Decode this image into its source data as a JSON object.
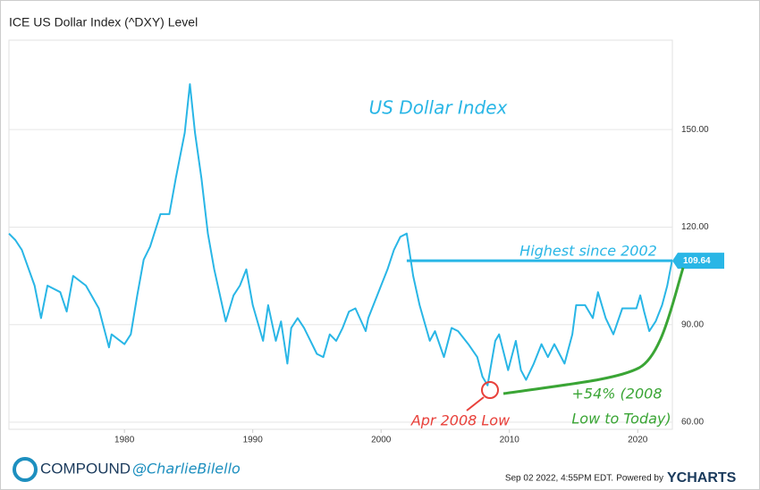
{
  "chart_data": {
    "type": "line",
    "title": "ICE US Dollar Index (^DXY) Level",
    "x": [
      1971,
      1971.5,
      1972,
      1973,
      1973.5,
      1974,
      1975,
      1975.5,
      1976,
      1977,
      1978,
      1978.8,
      1979,
      1980,
      1980.5,
      1981,
      1981.5,
      1982,
      1982.8,
      1983.5,
      1984,
      1984.7,
      1985.1,
      1985.5,
      1986,
      1986.5,
      1987,
      1987.9,
      1988.5,
      1989,
      1989.5,
      1990,
      1990.8,
      1991.2,
      1991.8,
      1992.2,
      1992.7,
      1993,
      1993.5,
      1994,
      1995,
      1995.5,
      1996,
      1996.5,
      1997,
      1997.5,
      1998,
      1998.8,
      1999,
      2000,
      2000.5,
      2001,
      2001.5,
      2002,
      2002.5,
      2003,
      2003.8,
      2004.2,
      2004.9,
      2005.5,
      2006,
      2006.8,
      2007.5,
      2007.9,
      2008.3,
      2008.9,
      2009.2,
      2009.9,
      2010.5,
      2010.9,
      2011.3,
      2011.9,
      2012.5,
      2013,
      2013.5,
      2014.3,
      2014.9,
      2015.2,
      2015.9,
      2016.5,
      2016.9,
      2017.5,
      2018.1,
      2018.8,
      2019.5,
      2019.9,
      2020.2,
      2020.5,
      2020.9,
      2021.4,
      2021.9,
      2022.3,
      2022.67
    ],
    "series": [
      {
        "name": "ICE US Dollar Index (^DXY) Level",
        "color": "#29b6e6",
        "values": [
          118,
          116,
          113,
          102,
          92,
          102,
          100,
          94,
          105,
          102,
          95,
          83,
          87,
          84,
          87,
          99,
          110,
          114,
          124,
          124,
          135,
          149,
          164,
          149,
          135,
          118,
          107,
          91,
          99,
          102,
          107,
          96,
          85,
          96,
          85,
          91,
          78,
          89,
          92,
          89,
          81,
          80,
          87,
          85,
          89,
          94,
          95,
          88,
          92,
          102,
          107,
          113,
          117,
          118,
          105,
          96,
          85,
          88,
          80,
          89,
          88,
          84,
          80,
          74,
          71.3,
          85,
          87,
          76,
          85,
          76,
          73,
          78,
          84,
          80,
          84,
          78,
          87,
          96,
          96,
          92,
          100,
          92,
          87,
          95,
          95,
          95,
          99,
          94,
          88,
          91,
          96,
          102,
          109.64
        ]
      }
    ],
    "xlim": [
      1971,
      2022.7
    ],
    "ylim": [
      57.8,
      177.5
    ],
    "xticks": [
      1980,
      1990,
      2000,
      2010,
      2020
    ],
    "yticks": [
      {
        "value": 60,
        "label": "60.00"
      },
      {
        "value": 90,
        "label": "90.00"
      },
      {
        "value": 120,
        "label": "120.00"
      },
      {
        "value": 150,
        "label": "150.00"
      }
    ],
    "grid": true,
    "annotations": {
      "heading": "US Dollar Index",
      "high": "Highest since 2002",
      "gain1": "+54% (2008",
      "gain2": "Low to Today)",
      "low": "Apr 2008 Low"
    }
  },
  "footer": {
    "brand": "COMPOUND",
    "handle": "@CharlieBilello",
    "timestamp": "Sep 02 2022, 4:55PM EDT.",
    "powered": "Powered by",
    "provider": "YCHARTS"
  }
}
